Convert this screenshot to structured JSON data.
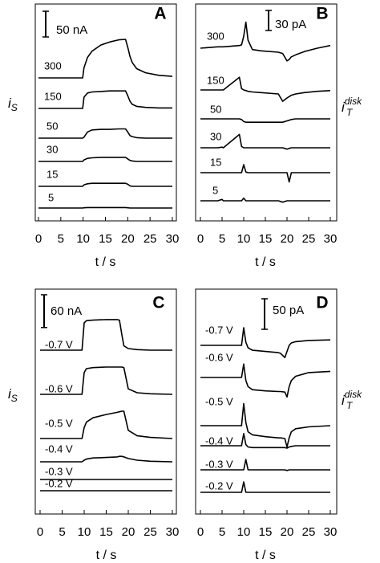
{
  "chart_data": [
    {
      "type": "line",
      "panel": "A",
      "ylabel": {
        "text": "i",
        "sub": "S"
      },
      "scalebar": {
        "value": 50,
        "label": "50 nA"
      },
      "xlim": [
        0,
        30
      ],
      "xticks": [
        0,
        5,
        10,
        15,
        20,
        25,
        30
      ],
      "xlabel": "t / s",
      "x": [
        0,
        5,
        9.9,
        10.2,
        11,
        12,
        14,
        16,
        18,
        19.5,
        20,
        20.5,
        21,
        22,
        24,
        27,
        30
      ],
      "series": [
        {
          "name": "300",
          "color": "#000000",
          "values": [
            0,
            0,
            0,
            20,
            40,
            52,
            64,
            70,
            74,
            75,
            60,
            42,
            30,
            18,
            10,
            5,
            3
          ]
        },
        {
          "name": "150",
          "color": "#000000",
          "values": [
            0,
            0,
            0,
            22,
            30,
            32,
            33,
            34,
            34,
            34,
            25,
            14,
            8,
            4,
            2,
            1,
            1
          ]
        },
        {
          "name": "50",
          "color": "#000000",
          "values": [
            0,
            0,
            0,
            2,
            12,
            16,
            17,
            17,
            18,
            18,
            12,
            5,
            3,
            1,
            0,
            0,
            0
          ]
        },
        {
          "name": "30",
          "color": "#000000",
          "values": [
            0,
            0,
            0,
            3,
            6,
            7,
            8,
            8,
            8,
            8,
            5,
            2,
            1,
            0,
            0,
            0,
            0
          ]
        },
        {
          "name": "15",
          "color": "#000000",
          "values": [
            0,
            0,
            0,
            3,
            5,
            6,
            6,
            6,
            6,
            6,
            4,
            1,
            0,
            0,
            0,
            0,
            0
          ]
        },
        {
          "name": "5",
          "color": "#000000",
          "values": [
            0,
            0,
            0,
            0.5,
            1,
            1,
            1,
            1,
            1,
            1,
            0.5,
            0,
            0,
            0,
            0,
            0,
            0
          ]
        }
      ]
    },
    {
      "type": "line",
      "panel": "B",
      "ylabel": {
        "text": "i",
        "sub": "T",
        "sup": "disk"
      },
      "scalebar": {
        "value": 30,
        "label": "30 pA"
      },
      "xlim": [
        0,
        30
      ],
      "xticks": [
        0,
        5,
        10,
        15,
        20,
        25,
        30
      ],
      "xlabel": "t / s",
      "x": [
        0,
        4,
        5,
        5.3,
        9,
        9.5,
        10,
        10.5,
        11,
        12,
        14,
        18,
        19,
        20,
        20.5,
        21,
        22,
        24,
        27,
        30
      ],
      "series": [
        {
          "name": "300",
          "color": "#000000",
          "values": [
            0,
            2,
            2,
            2,
            4,
            5,
            18,
            39,
            12,
            -2,
            -4,
            -6,
            -8,
            -19,
            -17,
            -13,
            -10,
            -5,
            0,
            4
          ]
        },
        {
          "name": "150",
          "color": "#000000",
          "values": [
            0,
            0,
            0,
            0,
            19,
            2,
            0,
            -1,
            -2,
            -3,
            -4,
            -6,
            -17,
            -12,
            -10,
            -8,
            -6,
            -4,
            -2,
            -1
          ]
        },
        {
          "name": "50",
          "color": "#000000",
          "values": [
            0,
            0,
            0,
            0,
            0,
            -1,
            -4,
            -5,
            -5,
            -5,
            -5,
            -5,
            -5,
            -3,
            -2,
            -1,
            0,
            0,
            0,
            0
          ]
        },
        {
          "name": "30",
          "color": "#000000",
          "values": [
            0,
            0,
            1,
            0,
            20,
            2,
            0,
            0,
            0,
            0,
            0,
            0,
            0,
            -2,
            -1,
            0,
            0,
            0,
            0,
            0
          ]
        },
        {
          "name": "15",
          "color": "#000000",
          "values": [
            0,
            0,
            0,
            0,
            0,
            0,
            12,
            1,
            0,
            0,
            0,
            0,
            0,
            0,
            -14,
            0,
            0,
            0,
            0,
            0
          ]
        },
        {
          "name": "5",
          "color": "#000000",
          "values": [
            0,
            0,
            2,
            0,
            0,
            0,
            4,
            0,
            0,
            0,
            0,
            0,
            -2,
            0,
            0,
            0,
            0,
            0,
            0,
            0
          ]
        }
      ]
    },
    {
      "type": "line",
      "panel": "C",
      "ylabel": {
        "text": "i",
        "sub": "S"
      },
      "scalebar": {
        "value": 60,
        "label": "60 nA"
      },
      "xlim": [
        0,
        30
      ],
      "xticks": [
        0,
        5,
        10,
        15,
        20,
        25,
        30
      ],
      "xlabel": "t / s",
      "x": [
        0,
        5,
        9.5,
        10,
        10.5,
        12,
        15,
        17.5,
        18,
        18.5,
        19,
        20,
        22,
        25,
        30
      ],
      "series": [
        {
          "name": "-0.7 V",
          "color": "#000000",
          "values": [
            0,
            0,
            0,
            50,
            54,
            55,
            56,
            56,
            55,
            30,
            8,
            3,
            1,
            0,
            0
          ]
        },
        {
          "name": "-0.6 V",
          "color": "#000000",
          "values": [
            0,
            0,
            0,
            40,
            47,
            49,
            50,
            50,
            50,
            50,
            49,
            10,
            3,
            1,
            0
          ]
        },
        {
          "name": "-0.5 V",
          "color": "#000000",
          "values": [
            0,
            0,
            0,
            20,
            30,
            38,
            44,
            48,
            49,
            50,
            50,
            15,
            5,
            2,
            0
          ]
        },
        {
          "name": "-0.4 V",
          "color": "#000000",
          "values": [
            0,
            0,
            0,
            3,
            5,
            7,
            8,
            9,
            10,
            10,
            9,
            6,
            3,
            1,
            0
          ]
        },
        {
          "name": "-0.3 V",
          "color": "#000000",
          "values": [
            0,
            0,
            0,
            0,
            0,
            0,
            0,
            0,
            0,
            0,
            0,
            0,
            0,
            0,
            0
          ]
        },
        {
          "name": "-0.2 V",
          "color": "#000000",
          "values": [
            0,
            0,
            0,
            0,
            0,
            0,
            0,
            0,
            0,
            0,
            0,
            0,
            0,
            0,
            0
          ]
        }
      ]
    },
    {
      "type": "line",
      "panel": "D",
      "ylabel": {
        "text": "i",
        "sub": "T",
        "sup": "disk"
      },
      "scalebar": {
        "value": 50,
        "label": "50 pA"
      },
      "xlim": [
        0,
        30
      ],
      "xticks": [
        0,
        5,
        10,
        15,
        20,
        25,
        30
      ],
      "xlabel": "t / s",
      "x": [
        0,
        5,
        9.5,
        10,
        10.5,
        11,
        12,
        15,
        18,
        18.5,
        19.5,
        20,
        20.5,
        21,
        22,
        25,
        30
      ],
      "series": [
        {
          "name": "-0.7 V",
          "color": "#000000",
          "values": [
            0,
            0,
            0,
            29,
            5,
            -4,
            -8,
            -10,
            -12,
            -13,
            -20,
            -10,
            0,
            4,
            6,
            8,
            9
          ]
        },
        {
          "name": "-0.6 V",
          "color": "#000000",
          "values": [
            0,
            0,
            0,
            22,
            -5,
            -15,
            -20,
            -22,
            -23,
            -23,
            -24,
            -32,
            -15,
            -5,
            2,
            8,
            10
          ]
        },
        {
          "name": "-0.5 V",
          "color": "#000000",
          "values": [
            0,
            0,
            0,
            36,
            5,
            -10,
            -15,
            -18,
            -20,
            -20,
            -21,
            -35,
            -20,
            -10,
            -5,
            -2,
            0
          ]
        },
        {
          "name": "-0.4 V",
          "color": "#000000",
          "values": [
            0,
            0,
            0,
            20,
            2,
            -2,
            -3,
            -3,
            -3,
            -3,
            -3,
            -4,
            -2,
            -1,
            0,
            0,
            0
          ]
        },
        {
          "name": "-0.3 V",
          "color": "#000000",
          "values": [
            0,
            0,
            0,
            0,
            17,
            0,
            0,
            0,
            0,
            0,
            0,
            -1,
            0,
            0,
            0,
            0,
            0
          ]
        },
        {
          "name": "-0.2 V",
          "color": "#000000",
          "values": [
            0,
            0,
            0,
            17,
            0,
            0,
            0,
            0,
            0,
            0,
            0,
            0,
            0,
            0,
            0,
            0,
            0
          ]
        }
      ]
    }
  ]
}
